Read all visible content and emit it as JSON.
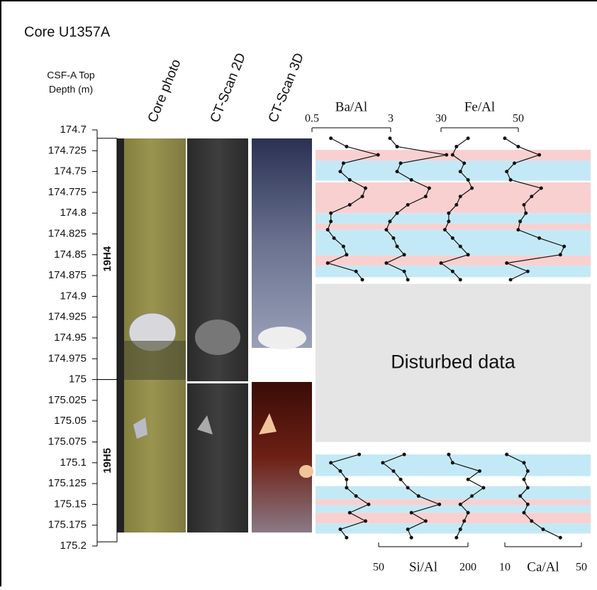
{
  "chart_data": {
    "type": "line",
    "title": "Core U1357A",
    "y_label_lines": [
      "CSF-A Top",
      "Depth (m)"
    ],
    "columns": [
      "Core photo",
      "CT-Scan 2D",
      "CT-Scan 3D"
    ],
    "ylim": [
      174.7,
      175.2
    ],
    "y_inverted": true,
    "yticks": [
      174.7,
      174.725,
      174.75,
      174.775,
      174.8,
      174.825,
      174.85,
      174.875,
      174.9,
      174.925,
      174.95,
      174.975,
      175,
      175.025,
      175.05,
      175.075,
      175.1,
      175.125,
      175.15,
      175.175,
      175.2
    ],
    "sections": [
      {
        "label": "19H4",
        "from": 174.71,
        "to": 175
      },
      {
        "label": "19H5",
        "from": 175,
        "to": 175.195
      }
    ],
    "x": [
      174.71,
      174.72,
      174.73,
      174.74,
      174.75,
      174.76,
      174.77,
      174.78,
      174.79,
      174.8,
      174.81,
      174.82,
      174.83,
      174.84,
      174.85,
      174.86,
      174.87,
      174.88,
      175,
      175.09,
      175.1,
      175.11,
      175.12,
      175.13,
      175.14,
      175.15,
      175.16,
      175.17,
      175.18,
      175.19
    ],
    "series": [
      {
        "name": "Ba/Al",
        "axis": "top",
        "color": "#111111",
        "xlim": [
          0.5,
          3
        ],
        "xticks": [
          0.5,
          3
        ],
        "values": [
          1.1,
          1.6,
          2.6,
          1.5,
          1.4,
          1.7,
          2.2,
          2.1,
          1.7,
          1.1,
          1.1,
          1.0,
          1.2,
          1.5,
          1.6,
          1.0,
          1.9,
          2.1,
          null,
          2.0,
          1.1,
          1.4,
          1.6,
          1.6,
          1.9,
          2.3,
          1.7,
          2.2,
          1.4,
          1.6
        ]
      },
      {
        "name": "Fe/Al",
        "axis": "top",
        "color": "#111111",
        "xlim": [
          30,
          50
        ],
        "xticks": [
          30,
          50
        ],
        "values": [
          37,
          34,
          33,
          36,
          35,
          37,
          38,
          35,
          34,
          32,
          32,
          31,
          33,
          35,
          37,
          30,
          33,
          35,
          null,
          32,
          33,
          40,
          37,
          41,
          38,
          35,
          37,
          36,
          35,
          34
        ]
      },
      {
        "name": "Si/Al",
        "axis": "bottom",
        "color": "#111111",
        "xlim": [
          50,
          200
        ],
        "xticks": [
          50,
          200
        ],
        "values": [
          69,
          81,
          164,
          87,
          81,
          105,
          135,
          129,
          99,
          81,
          69,
          63,
          75,
          81,
          93,
          63,
          93,
          99,
          null,
          93,
          57,
          75,
          87,
          99,
          117,
          152,
          105,
          129,
          99,
          105
        ]
      },
      {
        "name": "Ca/Al",
        "axis": "bottom",
        "color": "#111111",
        "xlim": [
          10,
          50
        ],
        "xticks": [
          10,
          50
        ],
        "values": [
          10,
          17,
          28,
          15,
          11,
          13,
          29,
          24,
          20,
          21,
          18,
          17,
          28,
          41,
          39,
          11,
          22,
          13,
          null,
          11,
          20,
          22,
          20,
          22,
          18,
          22,
          20,
          24,
          30,
          39
        ]
      }
    ],
    "intervals": [
      {
        "from": 174.724,
        "to": 174.737,
        "color": "#f9d0d0"
      },
      {
        "from": 174.737,
        "to": 174.761,
        "color": "#c4e9f6"
      },
      {
        "from": 174.763,
        "to": 174.8,
        "color": "#f9d0d0"
      },
      {
        "from": 174.8,
        "to": 174.813,
        "color": "#c4e9f6"
      },
      {
        "from": 174.813,
        "to": 174.82,
        "color": "#f9d0d0"
      },
      {
        "from": 174.82,
        "to": 174.851,
        "color": "#c4e9f6"
      },
      {
        "from": 174.851,
        "to": 174.863,
        "color": "#f9d0d0"
      },
      {
        "from": 174.863,
        "to": 174.877,
        "color": "#c4e9f6"
      },
      {
        "from": 175.09,
        "to": 175.116,
        "color": "#c4e9f6"
      },
      {
        "from": 175.128,
        "to": 175.144,
        "color": "#c4e9f6"
      },
      {
        "from": 175.144,
        "to": 175.151,
        "color": "#f9d0d0"
      },
      {
        "from": 175.151,
        "to": 175.16,
        "color": "#c4e9f6"
      },
      {
        "from": 175.16,
        "to": 175.173,
        "color": "#f9d0d0"
      },
      {
        "from": 175.173,
        "to": 175.185,
        "color": "#c4e9f6"
      }
    ],
    "disturbed": {
      "label": "Disturbed data",
      "from": 174.885,
      "to": 175.075,
      "color": "#e5e5e5"
    }
  }
}
